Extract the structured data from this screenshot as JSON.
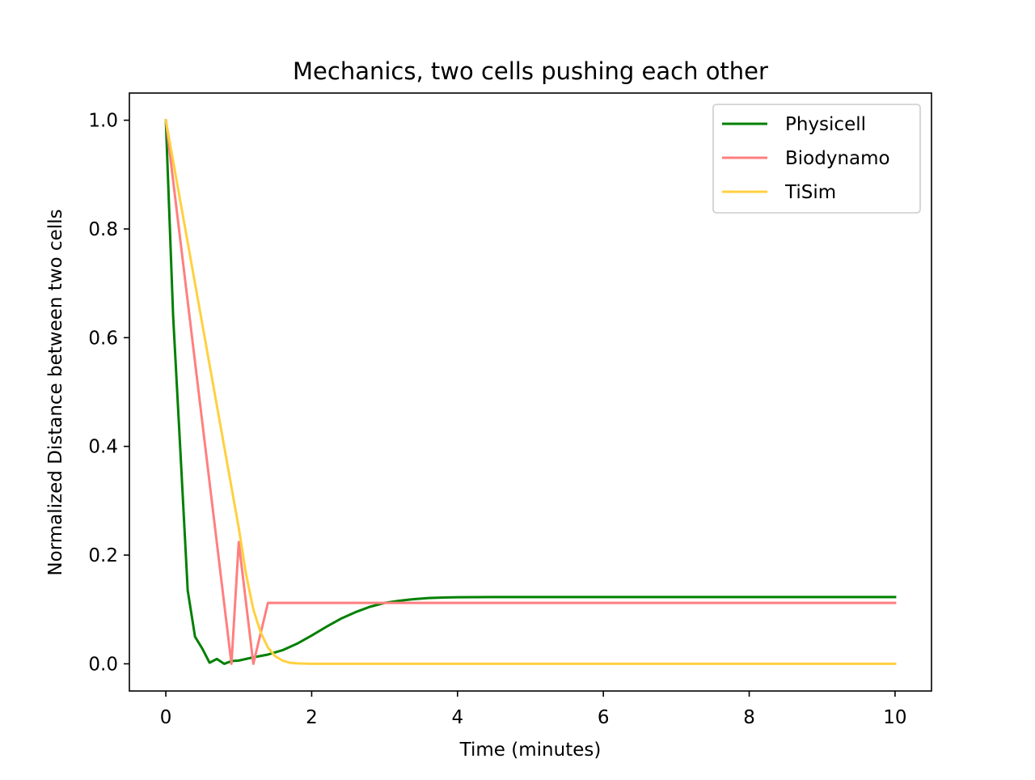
{
  "chart_data": {
    "type": "line",
    "title": "Mechanics, two cells pushing each other",
    "xlabel": "Time (minutes)",
    "ylabel": "Normalized Distance between two cells",
    "xlim": [
      -0.5,
      10.5
    ],
    "ylim": [
      -0.05,
      1.05
    ],
    "x_ticks": [
      0,
      2,
      4,
      6,
      8,
      10
    ],
    "x_tick_labels": [
      "0",
      "2",
      "4",
      "6",
      "8",
      "10"
    ],
    "y_ticks": [
      0.0,
      0.2,
      0.4,
      0.6,
      0.8,
      1.0
    ],
    "y_tick_labels": [
      "0.0",
      "0.2",
      "0.4",
      "0.6",
      "0.8",
      "1.0"
    ],
    "grid": false,
    "legend_position": "top-right",
    "series": [
      {
        "name": "Physicell",
        "color": "#008000",
        "x": [
          0,
          0.1,
          0.2,
          0.3,
          0.4,
          0.5,
          0.6,
          0.7,
          0.8,
          0.9,
          1.0,
          1.2,
          1.4,
          1.6,
          1.8,
          2.0,
          2.2,
          2.4,
          2.6,
          2.8,
          3.0,
          3.2,
          3.4,
          3.6,
          3.8,
          4.0,
          4.5,
          5.0,
          6.0,
          7.0,
          8.0,
          9.0,
          10.0
        ],
        "y": [
          1.0,
          0.64,
          0.39,
          0.135,
          0.05,
          0.028,
          0.002,
          0.009,
          0.0,
          0.005,
          0.006,
          0.012,
          0.017,
          0.025,
          0.037,
          0.052,
          0.068,
          0.083,
          0.095,
          0.105,
          0.112,
          0.116,
          0.119,
          0.121,
          0.122,
          0.1225,
          0.1228,
          0.1228,
          0.1228,
          0.1228,
          0.1228,
          0.1228,
          0.1228
        ]
      },
      {
        "name": "Biodynamo",
        "color": "#ff7f7f",
        "x": [
          0,
          0.9,
          1.0,
          1.2,
          1.4,
          2.0,
          4.0,
          6.0,
          8.0,
          10.0
        ],
        "y": [
          1.0,
          0.0,
          0.224,
          0.0,
          0.112,
          0.112,
          0.112,
          0.112,
          0.112,
          0.112
        ]
      },
      {
        "name": "TiSim",
        "color": "#ffd040",
        "x": [
          0,
          0.2,
          0.4,
          0.6,
          0.8,
          1.0,
          1.1,
          1.2,
          1.3,
          1.4,
          1.5,
          1.6,
          1.7,
          1.8,
          2.0,
          3.0,
          4.0,
          6.0,
          8.0,
          10.0
        ],
        "y": [
          1.0,
          0.85,
          0.7,
          0.55,
          0.4,
          0.25,
          0.165,
          0.1,
          0.058,
          0.03,
          0.014,
          0.006,
          0.002,
          0.0008,
          0.0,
          0.0,
          0.0,
          0.0,
          0.0,
          0.0
        ]
      }
    ]
  }
}
